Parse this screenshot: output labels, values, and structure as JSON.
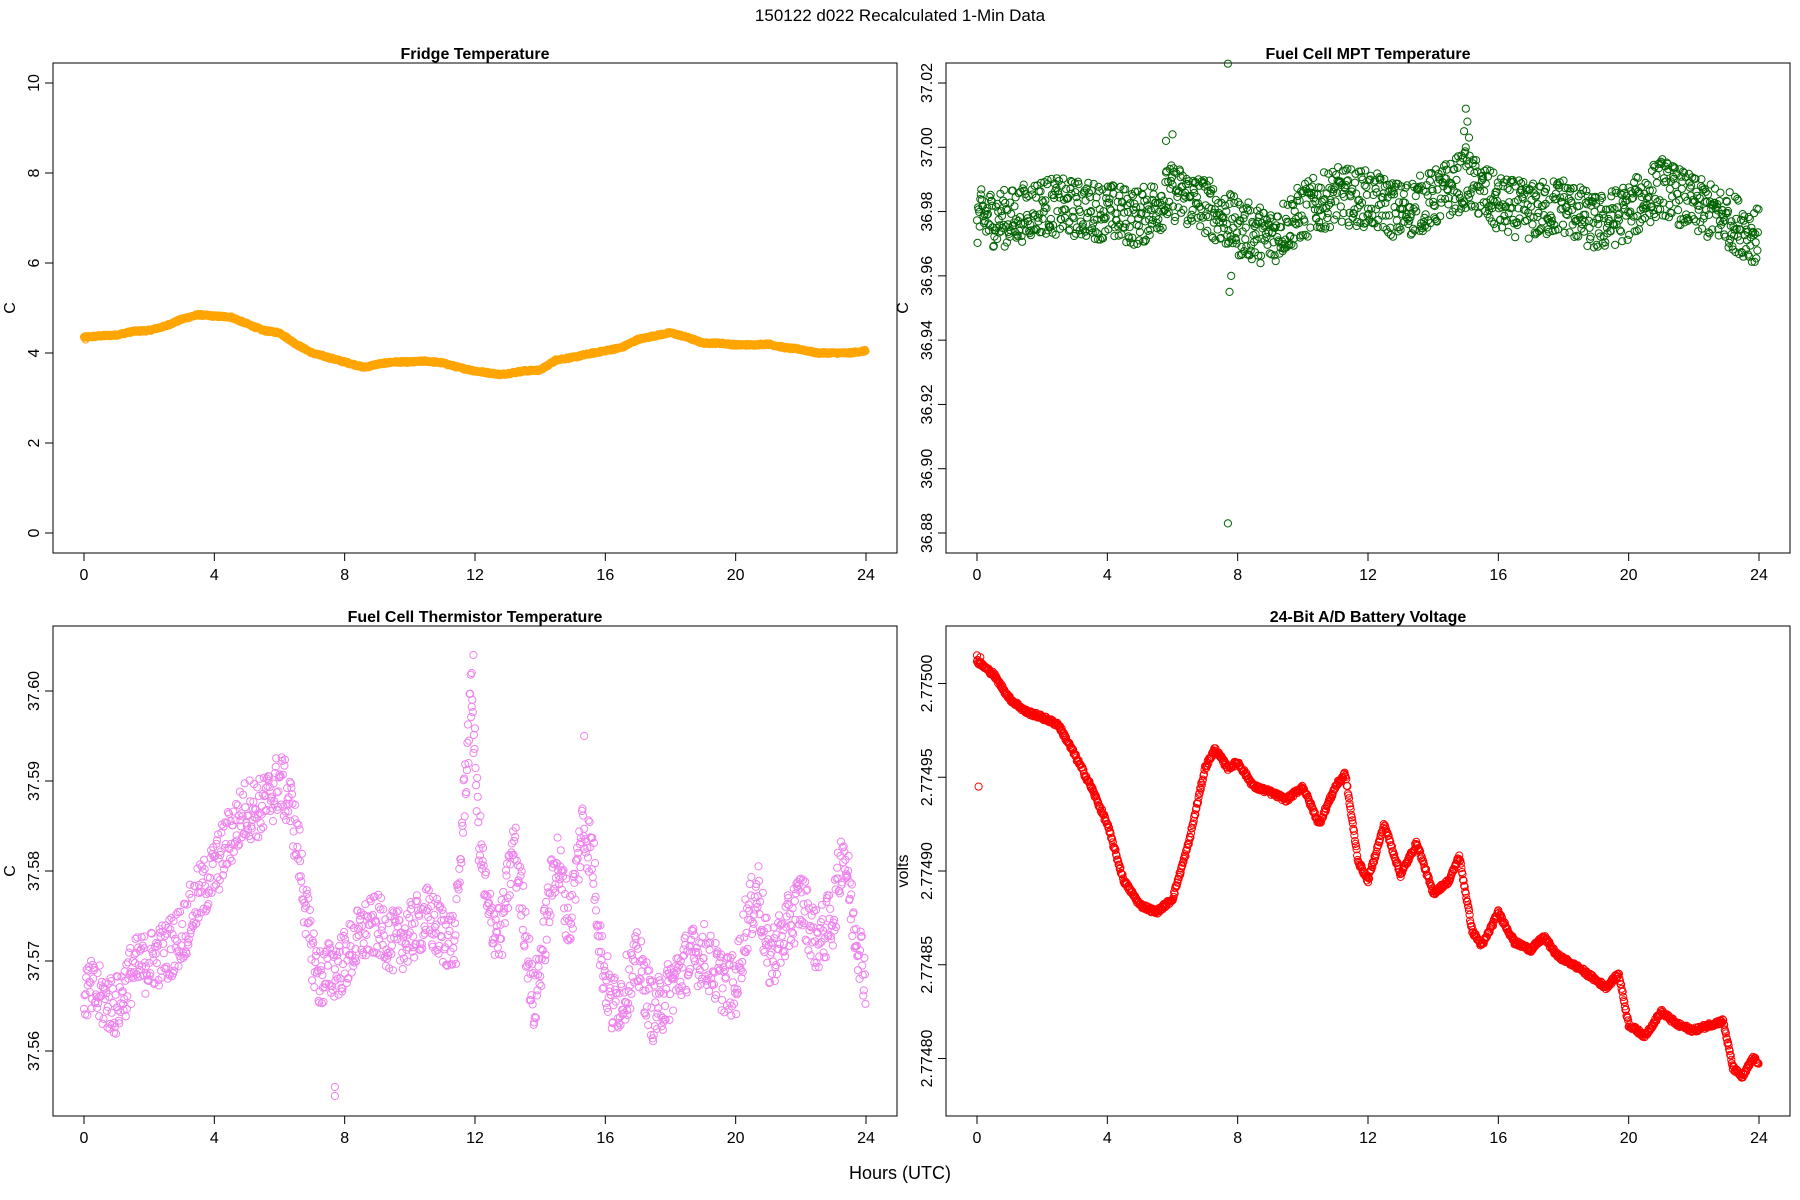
{
  "figure": {
    "title": "150122   d022   Recalculated 1-Min Data",
    "xlabel": "Hours (UTC)"
  },
  "chart_data": [
    {
      "type": "scatter",
      "title": "Fridge Temperature",
      "ylabel": "C",
      "color": "#FFA500",
      "point_style": "filled",
      "xlim": [
        0,
        24
      ],
      "ylim": [
        0,
        10
      ],
      "xticks": [
        0,
        4,
        8,
        12,
        16,
        20,
        24
      ],
      "yticks": [
        0,
        2,
        4,
        6,
        8,
        10
      ],
      "ytick_labels": [
        "0",
        "2",
        "4",
        "6",
        "8",
        "10"
      ],
      "series_anchors": [
        [
          0,
          4.35
        ],
        [
          0.5,
          4.38
        ],
        [
          1,
          4.4
        ],
        [
          1.5,
          4.48
        ],
        [
          2,
          4.5
        ],
        [
          2.5,
          4.6
        ],
        [
          3,
          4.75
        ],
        [
          3.5,
          4.85
        ],
        [
          4,
          4.82
        ],
        [
          4.5,
          4.8
        ],
        [
          5,
          4.65
        ],
        [
          5.5,
          4.5
        ],
        [
          6,
          4.45
        ],
        [
          6.5,
          4.2
        ],
        [
          7,
          4.0
        ],
        [
          7.5,
          3.9
        ],
        [
          8,
          3.8
        ],
        [
          8.6,
          3.68
        ],
        [
          9,
          3.75
        ],
        [
          9.5,
          3.8
        ],
        [
          10,
          3.8
        ],
        [
          10.5,
          3.82
        ],
        [
          11,
          3.78
        ],
        [
          11.5,
          3.68
        ],
        [
          12,
          3.6
        ],
        [
          12.8,
          3.52
        ],
        [
          13.5,
          3.6
        ],
        [
          14,
          3.62
        ],
        [
          14.5,
          3.85
        ],
        [
          15,
          3.9
        ],
        [
          15.5,
          3.98
        ],
        [
          16,
          4.05
        ],
        [
          16.5,
          4.12
        ],
        [
          17,
          4.3
        ],
        [
          17.5,
          4.38
        ],
        [
          18,
          4.45
        ],
        [
          18.5,
          4.35
        ],
        [
          19,
          4.22
        ],
        [
          19.5,
          4.22
        ],
        [
          20,
          4.18
        ],
        [
          20.5,
          4.18
        ],
        [
          21,
          4.2
        ],
        [
          21.5,
          4.12
        ],
        [
          22,
          4.08
        ],
        [
          22.5,
          4.0
        ],
        [
          23,
          4.0
        ],
        [
          23.5,
          4.0
        ],
        [
          24,
          4.05
        ]
      ],
      "noise_amplitude": 0.02,
      "outliers": [
        [
          0.05,
          4.3
        ]
      ]
    },
    {
      "type": "scatter",
      "title": "Fuel Cell MPT Temperature",
      "ylabel": "C",
      "color": "#006400",
      "point_style": "hollow",
      "xlim": [
        0,
        24
      ],
      "ylim": [
        36.88,
        37.02
      ],
      "xticks": [
        0,
        4,
        8,
        12,
        16,
        20,
        24
      ],
      "yticks": [
        36.88,
        36.9,
        36.92,
        36.94,
        36.96,
        36.98,
        37.0,
        37.02
      ],
      "ytick_labels": [
        "36.88",
        "36.90",
        "36.92",
        "36.94",
        "36.96",
        "36.98",
        "37.00",
        "37.02"
      ],
      "series_anchors": [
        [
          0,
          36.978
        ],
        [
          1,
          36.978
        ],
        [
          2,
          36.982
        ],
        [
          3,
          36.981
        ],
        [
          4,
          36.98
        ],
        [
          5,
          36.978
        ],
        [
          6,
          36.986
        ],
        [
          7,
          36.982
        ],
        [
          8,
          36.975
        ],
        [
          9,
          36.972
        ],
        [
          10,
          36.98
        ],
        [
          11,
          36.985
        ],
        [
          12,
          36.984
        ],
        [
          13,
          36.98
        ],
        [
          14,
          36.984
        ],
        [
          15,
          36.99
        ],
        [
          16,
          36.982
        ],
        [
          17,
          36.98
        ],
        [
          18,
          36.982
        ],
        [
          19,
          36.976
        ],
        [
          20,
          36.98
        ],
        [
          21,
          36.988
        ],
        [
          22,
          36.982
        ],
        [
          23,
          36.978
        ],
        [
          24,
          36.972
        ]
      ],
      "noise_amplitude": 0.009,
      "outliers": [
        [
          7.7,
          37.026
        ],
        [
          7.7,
          36.883
        ],
        [
          7.75,
          36.955
        ],
        [
          7.8,
          36.96
        ],
        [
          15.0,
          37.012
        ],
        [
          15.05,
          37.008
        ],
        [
          14.95,
          37.005
        ],
        [
          15.1,
          37.003
        ],
        [
          15.0,
          37.0
        ],
        [
          6.0,
          37.004
        ],
        [
          5.8,
          37.002
        ]
      ]
    },
    {
      "type": "scatter",
      "title": "Fuel Cell Thermistor Temperature",
      "ylabel": "C",
      "color": "#EE82EE",
      "point_style": "hollow",
      "xlim": [
        0,
        24
      ],
      "ylim": [
        37.555,
        37.605
      ],
      "xticks": [
        0,
        4,
        8,
        12,
        16,
        20,
        24
      ],
      "yticks": [
        37.56,
        37.57,
        37.58,
        37.59,
        37.6
      ],
      "ytick_labels": [
        "37.56",
        "37.57",
        "37.58",
        "37.59",
        "37.60"
      ],
      "series_anchors": [
        [
          0,
          37.567
        ],
        [
          0.5,
          37.566
        ],
        [
          1,
          37.565
        ],
        [
          1.5,
          37.569
        ],
        [
          2,
          37.57
        ],
        [
          2.5,
          37.571
        ],
        [
          3,
          37.573
        ],
        [
          3.5,
          37.577
        ],
        [
          4,
          37.58
        ],
        [
          4.5,
          37.584
        ],
        [
          5,
          37.587
        ],
        [
          5.5,
          37.587
        ],
        [
          6,
          37.59
        ],
        [
          6.3,
          37.588
        ],
        [
          6.6,
          37.582
        ],
        [
          6.9,
          37.573
        ],
        [
          7.2,
          37.568
        ],
        [
          7.6,
          37.569
        ],
        [
          8,
          37.57
        ],
        [
          8.5,
          37.573
        ],
        [
          9,
          37.574
        ],
        [
          9.5,
          37.572
        ],
        [
          10,
          37.573
        ],
        [
          10.5,
          37.575
        ],
        [
          11,
          37.573
        ],
        [
          11.4,
          37.572
        ],
        [
          11.7,
          37.59
        ],
        [
          11.9,
          37.6
        ],
        [
          12.1,
          37.585
        ],
        [
          12.4,
          37.575
        ],
        [
          12.8,
          37.573
        ],
        [
          13.2,
          37.583
        ],
        [
          13.5,
          37.575
        ],
        [
          13.8,
          37.565
        ],
        [
          14.1,
          37.572
        ],
        [
          14.5,
          37.582
        ],
        [
          14.9,
          37.574
        ],
        [
          15.3,
          37.585
        ],
        [
          15.6,
          37.582
        ],
        [
          15.9,
          37.57
        ],
        [
          16.2,
          37.565
        ],
        [
          16.5,
          37.566
        ],
        [
          17,
          37.57
        ],
        [
          17.5,
          37.564
        ],
        [
          18,
          37.567
        ],
        [
          18.5,
          37.57
        ],
        [
          19,
          37.571
        ],
        [
          19.5,
          37.568
        ],
        [
          20,
          37.567
        ],
        [
          20.3,
          37.574
        ],
        [
          20.7,
          37.578
        ],
        [
          21,
          37.57
        ],
        [
          21.5,
          37.573
        ],
        [
          22,
          37.577
        ],
        [
          22.5,
          37.572
        ],
        [
          23,
          37.575
        ],
        [
          23.3,
          37.583
        ],
        [
          23.6,
          37.575
        ],
        [
          24,
          37.568
        ]
      ],
      "noise_amplitude": 0.0035,
      "outliers": [
        [
          7.7,
          37.556
        ],
        [
          7.7,
          37.555
        ],
        [
          11.95,
          37.604
        ],
        [
          11.9,
          37.602
        ],
        [
          15.35,
          37.595
        ]
      ]
    },
    {
      "type": "scatter",
      "title": "24-Bit A/D Battery Voltage",
      "ylabel": "volts",
      "color": "#FF0000",
      "point_style": "hollow",
      "xlim": [
        0,
        24
      ],
      "ylim": [
        2.77478,
        2.77502
      ],
      "xticks": [
        0,
        4,
        8,
        12,
        16,
        20,
        24
      ],
      "yticks": [
        2.7748,
        2.77485,
        2.7749,
        2.77495,
        2.775
      ],
      "ytick_labels": [
        "2.77480",
        "2.77485",
        "2.77490",
        "2.77495",
        "2.77500"
      ],
      "series_anchors": [
        [
          0,
          2.775012
        ],
        [
          0.5,
          2.775005
        ],
        [
          1,
          2.774992
        ],
        [
          1.5,
          2.774985
        ],
        [
          2,
          2.774982
        ],
        [
          2.5,
          2.774978
        ],
        [
          3,
          2.774962
        ],
        [
          3.5,
          2.774945
        ],
        [
          4,
          2.774925
        ],
        [
          4.5,
          2.774895
        ],
        [
          5,
          2.774882
        ],
        [
          5.5,
          2.774878
        ],
        [
          6,
          2.774885
        ],
        [
          6.5,
          2.774915
        ],
        [
          7,
          2.774955
        ],
        [
          7.3,
          2.774965
        ],
        [
          7.7,
          2.774955
        ],
        [
          8,
          2.774958
        ],
        [
          8.5,
          2.774945
        ],
        [
          9,
          2.774942
        ],
        [
          9.5,
          2.774938
        ],
        [
          10,
          2.774945
        ],
        [
          10.5,
          2.774925
        ],
        [
          11,
          2.774945
        ],
        [
          11.3,
          2.774952
        ],
        [
          11.7,
          2.774905
        ],
        [
          12,
          2.774895
        ],
        [
          12.5,
          2.774925
        ],
        [
          13,
          2.774898
        ],
        [
          13.5,
          2.774915
        ],
        [
          14,
          2.774888
        ],
        [
          14.5,
          2.774895
        ],
        [
          14.8,
          2.774908
        ],
        [
          15.2,
          2.774868
        ],
        [
          15.5,
          2.77486
        ],
        [
          16,
          2.774878
        ],
        [
          16.5,
          2.774862
        ],
        [
          17,
          2.774858
        ],
        [
          17.4,
          2.774865
        ],
        [
          17.8,
          2.774855
        ],
        [
          18.5,
          2.774848
        ],
        [
          19.3,
          2.774838
        ],
        [
          19.7,
          2.774845
        ],
        [
          20,
          2.774818
        ],
        [
          20.5,
          2.774812
        ],
        [
          21,
          2.774825
        ],
        [
          21.5,
          2.774818
        ],
        [
          22,
          2.774815
        ],
        [
          22.5,
          2.774818
        ],
        [
          22.9,
          2.77482
        ],
        [
          23.2,
          2.774795
        ],
        [
          23.5,
          2.77479
        ],
        [
          23.8,
          2.7748
        ],
        [
          24,
          2.774798
        ]
      ],
      "noise_amplitude": 1.2e-06,
      "outliers": [
        [
          0.05,
          2.774945
        ],
        [
          0.0,
          2.775015
        ],
        [
          0.1,
          2.775014
        ]
      ]
    }
  ]
}
